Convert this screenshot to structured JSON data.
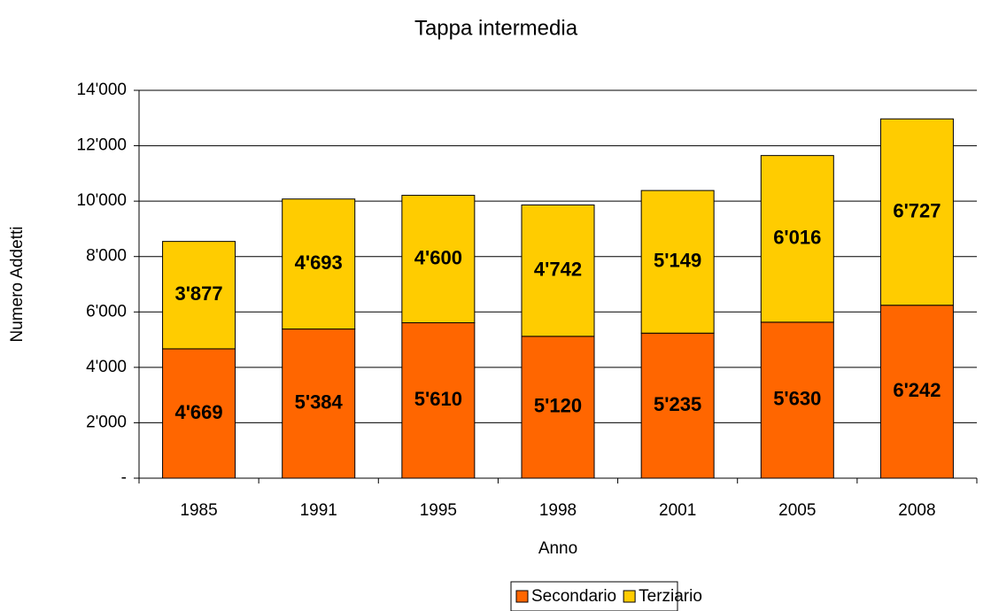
{
  "chart_data": {
    "type": "stacked_bar",
    "title": "Tappa intermedia",
    "x_label": "Anno",
    "y_label": "Numero Addetti",
    "categories": [
      "1985",
      "1991",
      "1995",
      "1998",
      "2001",
      "2005",
      "2008"
    ],
    "series": [
      {
        "name": "Secondario",
        "color": "#ff6600",
        "values": [
          4669,
          5384,
          5610,
          5120,
          5235,
          5630,
          6242
        ],
        "value_labels": [
          "4'669",
          "5'384",
          "5'610",
          "5'120",
          "5'235",
          "5'630",
          "6'242"
        ]
      },
      {
        "name": "Terziario",
        "color": "#ffcc00",
        "values": [
          3877,
          4693,
          4600,
          4742,
          5149,
          6016,
          6727
        ],
        "value_labels": [
          "3'877",
          "4'693",
          "4'600",
          "4'742",
          "5'149",
          "6'016",
          "6'727"
        ]
      }
    ],
    "ylim": [
      0,
      14000
    ],
    "yticks": [
      {
        "value": 0,
        "label": "-"
      },
      {
        "value": 2000,
        "label": "2'000"
      },
      {
        "value": 4000,
        "label": "4'000"
      },
      {
        "value": 6000,
        "label": "6'000"
      },
      {
        "value": 8000,
        "label": "8'000"
      },
      {
        "value": 10000,
        "label": "10'000"
      },
      {
        "value": 12000,
        "label": "12'000"
      },
      {
        "value": 14000,
        "label": "14'000"
      }
    ],
    "grid": true,
    "legend": "bottom"
  }
}
